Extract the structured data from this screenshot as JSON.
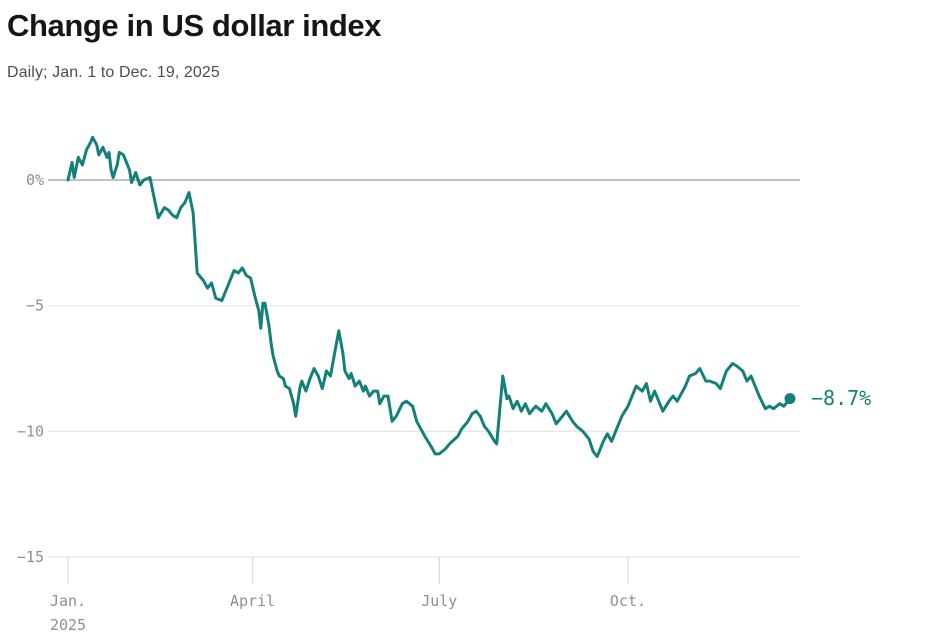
{
  "chart_data": {
    "type": "line",
    "title": "Change in US dollar index",
    "subtitle": "Daily; Jan. 1 to Dec. 19, 2025",
    "series_name": "US dollar index, % change since Jan. 1, 2025",
    "unit": "%",
    "x_unit": "days since Jan. 1, 2025",
    "x_domain_days": [
      0,
      352
    ],
    "ylim": [
      -15,
      2.5
    ],
    "grid": true,
    "legend_position": "none",
    "y_ticks": [
      {
        "value": 0,
        "label": "0%"
      },
      {
        "value": -5,
        "label": "−5"
      },
      {
        "value": -10,
        "label": "−10"
      },
      {
        "value": -15,
        "label": "−15"
      }
    ],
    "x_ticks": [
      {
        "day": 0,
        "label": "Jan.",
        "sublabel": "2025"
      },
      {
        "day": 90,
        "label": "April",
        "sublabel": ""
      },
      {
        "day": 181,
        "label": "July",
        "sublabel": ""
      },
      {
        "day": 273,
        "label": "Oct.",
        "sublabel": ""
      }
    ],
    "end_label": "−8.7%",
    "end_value": -8.7,
    "colors": {
      "line": "#14807a",
      "grid": "#e4e4e4",
      "zero_line": "#ababab",
      "tick": "#dadada",
      "axis_text": "#8f8f8f",
      "title": "#161616",
      "subtitle": "#4d4d4d"
    },
    "points": [
      [
        0,
        0.0
      ],
      [
        2,
        0.7
      ],
      [
        3,
        0.1
      ],
      [
        5,
        0.9
      ],
      [
        7,
        0.6
      ],
      [
        9,
        1.2
      ],
      [
        11,
        1.5
      ],
      [
        12,
        1.7
      ],
      [
        14,
        1.4
      ],
      [
        15,
        1.0
      ],
      [
        17,
        1.3
      ],
      [
        19,
        0.9
      ],
      [
        20,
        1.1
      ],
      [
        21,
        0.4
      ],
      [
        22,
        0.1
      ],
      [
        24,
        0.6
      ],
      [
        25,
        1.1
      ],
      [
        27,
        1.0
      ],
      [
        29,
        0.6
      ],
      [
        30,
        0.4
      ],
      [
        31,
        -0.1
      ],
      [
        33,
        0.3
      ],
      [
        35,
        -0.2
      ],
      [
        37,
        0.0
      ],
      [
        40,
        0.1
      ],
      [
        42,
        -0.7
      ],
      [
        44,
        -1.5
      ],
      [
        47,
        -1.1
      ],
      [
        49,
        -1.2
      ],
      [
        51,
        -1.4
      ],
      [
        53,
        -1.5
      ],
      [
        55,
        -1.1
      ],
      [
        57,
        -0.9
      ],
      [
        59,
        -0.5
      ],
      [
        61,
        -1.3
      ],
      [
        63,
        -3.7
      ],
      [
        65,
        -3.9
      ],
      [
        66,
        -4.0
      ],
      [
        68,
        -4.3
      ],
      [
        70,
        -4.1
      ],
      [
        72,
        -4.7
      ],
      [
        75,
        -4.8
      ],
      [
        77,
        -4.4
      ],
      [
        79,
        -4.0
      ],
      [
        81,
        -3.6
      ],
      [
        83,
        -3.7
      ],
      [
        85,
        -3.5
      ],
      [
        87,
        -3.8
      ],
      [
        89,
        -3.9
      ],
      [
        91,
        -4.6
      ],
      [
        93,
        -5.2
      ],
      [
        94,
        -5.9
      ],
      [
        95,
        -4.9
      ],
      [
        96,
        -4.9
      ],
      [
        98,
        -5.8
      ],
      [
        99,
        -6.5
      ],
      [
        100,
        -7.0
      ],
      [
        102,
        -7.6
      ],
      [
        103,
        -7.8
      ],
      [
        105,
        -7.9
      ],
      [
        106,
        -8.2
      ],
      [
        108,
        -8.3
      ],
      [
        110,
        -8.9
      ],
      [
        111,
        -9.4
      ],
      [
        113,
        -8.3
      ],
      [
        114,
        -8.0
      ],
      [
        116,
        -8.4
      ],
      [
        118,
        -7.9
      ],
      [
        120,
        -7.5
      ],
      [
        122,
        -7.8
      ],
      [
        124,
        -8.3
      ],
      [
        126,
        -7.6
      ],
      [
        128,
        -7.8
      ],
      [
        130,
        -6.9
      ],
      [
        132,
        -6.0
      ],
      [
        134,
        -6.9
      ],
      [
        135,
        -7.6
      ],
      [
        137,
        -7.9
      ],
      [
        138,
        -7.7
      ],
      [
        140,
        -8.2
      ],
      [
        142,
        -8.0
      ],
      [
        144,
        -8.4
      ],
      [
        145,
        -8.2
      ],
      [
        147,
        -8.6
      ],
      [
        149,
        -8.4
      ],
      [
        151,
        -8.4
      ],
      [
        152,
        -8.9
      ],
      [
        154,
        -8.6
      ],
      [
        156,
        -8.6
      ],
      [
        158,
        -9.6
      ],
      [
        160,
        -9.4
      ],
      [
        163,
        -8.9
      ],
      [
        165,
        -8.8
      ],
      [
        168,
        -9.0
      ],
      [
        170,
        -9.6
      ],
      [
        174,
        -10.2
      ],
      [
        177,
        -10.6
      ],
      [
        179,
        -10.9
      ],
      [
        181,
        -10.9
      ],
      [
        184,
        -10.7
      ],
      [
        186,
        -10.5
      ],
      [
        190,
        -10.2
      ],
      [
        192,
        -9.9
      ],
      [
        195,
        -9.6
      ],
      [
        197,
        -9.3
      ],
      [
        199,
        -9.2
      ],
      [
        201,
        -9.4
      ],
      [
        203,
        -9.8
      ],
      [
        205,
        -10.0
      ],
      [
        208,
        -10.4
      ],
      [
        209,
        -10.5
      ],
      [
        212,
        -7.8
      ],
      [
        214,
        -8.7
      ],
      [
        215,
        -8.6
      ],
      [
        217,
        -9.1
      ],
      [
        219,
        -8.8
      ],
      [
        221,
        -9.2
      ],
      [
        223,
        -8.9
      ],
      [
        225,
        -9.3
      ],
      [
        228,
        -9.0
      ],
      [
        231,
        -9.2
      ],
      [
        233,
        -8.9
      ],
      [
        236,
        -9.3
      ],
      [
        238,
        -9.7
      ],
      [
        240,
        -9.5
      ],
      [
        243,
        -9.2
      ],
      [
        246,
        -9.6
      ],
      [
        248,
        -9.8
      ],
      [
        251,
        -10.0
      ],
      [
        254,
        -10.3
      ],
      [
        256,
        -10.8
      ],
      [
        258,
        -11.0
      ],
      [
        261,
        -10.4
      ],
      [
        263,
        -10.1
      ],
      [
        265,
        -10.4
      ],
      [
        268,
        -9.8
      ],
      [
        270,
        -9.4
      ],
      [
        273,
        -9.0
      ],
      [
        275,
        -8.6
      ],
      [
        277,
        -8.2
      ],
      [
        280,
        -8.4
      ],
      [
        282,
        -8.1
      ],
      [
        284,
        -8.8
      ],
      [
        286,
        -8.4
      ],
      [
        289,
        -9.0
      ],
      [
        290,
        -9.2
      ],
      [
        293,
        -8.8
      ],
      [
        295,
        -8.6
      ],
      [
        297,
        -8.8
      ],
      [
        301,
        -8.2
      ],
      [
        303,
        -7.8
      ],
      [
        306,
        -7.7
      ],
      [
        308,
        -7.5
      ],
      [
        311,
        -8.0
      ],
      [
        313,
        -8.0
      ],
      [
        316,
        -8.1
      ],
      [
        318,
        -8.3
      ],
      [
        321,
        -7.6
      ],
      [
        324,
        -7.3
      ],
      [
        326,
        -7.4
      ],
      [
        329,
        -7.6
      ],
      [
        331,
        -8.0
      ],
      [
        333,
        -7.8
      ],
      [
        335,
        -8.2
      ],
      [
        337,
        -8.6
      ],
      [
        340,
        -9.1
      ],
      [
        342,
        -9.0
      ],
      [
        344,
        -9.1
      ],
      [
        347,
        -8.9
      ],
      [
        349,
        -9.0
      ],
      [
        352,
        -8.7
      ]
    ]
  }
}
